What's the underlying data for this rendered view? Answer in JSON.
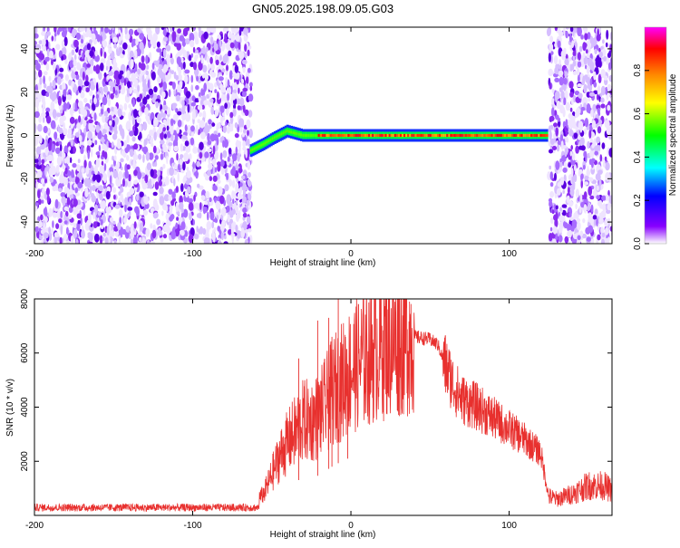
{
  "title": "GN05.2025.198.09.05.G03",
  "chart_data": [
    {
      "type": "heatmap",
      "xlabel": "Height of straight line (km)",
      "ylabel": "Frequency (Hz)",
      "xlim": [
        -200,
        165
      ],
      "ylim": [
        -50,
        50
      ],
      "x_ticks": [
        "-200",
        "-100",
        "0",
        "100"
      ],
      "y_ticks": [
        "-40",
        "-20",
        "0",
        "20",
        "40"
      ],
      "colorbar": {
        "label": "Normalized spectral amplitude",
        "range": [
          0,
          1
        ],
        "ticks": [
          "0.0",
          "0.2",
          "0.4",
          "0.6",
          "0.8"
        ],
        "colors": [
          "#ffffff",
          "#8800ff",
          "#0000ff",
          "#00ffff",
          "#00ff00",
          "#ffff00",
          "#ff8800",
          "#ff0000",
          "#ff00ff"
        ]
      },
      "noise_regions_km": [
        [
          -200,
          -63
        ],
        [
          125,
          165
        ]
      ],
      "signal_track": [
        {
          "x": -63,
          "freq": -7
        },
        {
          "x": -55,
          "freq": -4
        },
        {
          "x": -48,
          "freq": -1
        },
        {
          "x": -40,
          "freq": 2
        },
        {
          "x": -30,
          "freq": 0
        },
        {
          "x": -20,
          "freq": 0
        },
        {
          "x": -10,
          "freq": 0
        },
        {
          "x": 0,
          "freq": 0
        },
        {
          "x": 20,
          "freq": 0
        },
        {
          "x": 40,
          "freq": 0
        },
        {
          "x": 60,
          "freq": 0
        },
        {
          "x": 80,
          "freq": 0
        },
        {
          "x": 100,
          "freq": 0
        },
        {
          "x": 125,
          "freq": 0
        }
      ],
      "grid": false
    },
    {
      "type": "line",
      "xlabel": "Height of straight line (km)",
      "ylabel": "SNR (10 * v/v)",
      "xlim": [
        -200,
        165
      ],
      "ylim": [
        0,
        8000
      ],
      "x_ticks": [
        "-200",
        "-100",
        "0",
        "100"
      ],
      "y_ticks": [
        "2000",
        "4000",
        "6000",
        "8000"
      ],
      "series": [
        {
          "color": "#e8302e",
          "x": [
            -200,
            -180,
            -160,
            -140,
            -120,
            -100,
            -80,
            -65,
            -55,
            -50,
            -45,
            -40,
            -35,
            -30,
            -25,
            -20,
            -15,
            -10,
            -5,
            0,
            10,
            20,
            30,
            40,
            50,
            55,
            60,
            65,
            70,
            80,
            90,
            100,
            110,
            120,
            125,
            130,
            140,
            150,
            160,
            165
          ],
          "values": [
            300,
            300,
            300,
            280,
            280,
            280,
            280,
            300,
            800,
            1500,
            2200,
            2700,
            3100,
            3500,
            3500,
            3700,
            4200,
            4700,
            5000,
            5400,
            5900,
            6300,
            6500,
            6600,
            6500,
            6300,
            5500,
            4800,
            4300,
            4000,
            3600,
            3200,
            2800,
            2300,
            700,
            600,
            800,
            1100,
            1100,
            900
          ]
        }
      ],
      "spikes": [
        {
          "x": -33,
          "value": 5800
        },
        {
          "x": -21,
          "value": 7200
        },
        {
          "x": -14,
          "value": 7300
        },
        {
          "x": -8,
          "value": 8000
        },
        {
          "x": -12,
          "value": 6600
        },
        {
          "x": -2,
          "value": 5600
        }
      ],
      "grid": false
    }
  ]
}
